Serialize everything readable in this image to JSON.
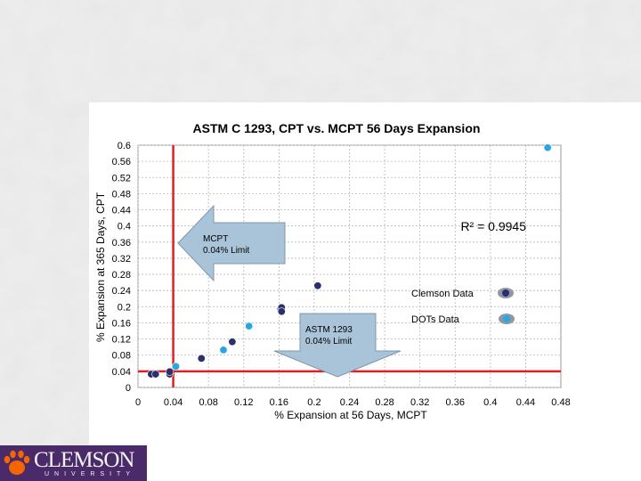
{
  "chart_data": {
    "type": "scatter",
    "title": "ASTM C 1293, CPT vs. MCPT 56 Days Expansion",
    "xlabel": "% Expansion at 56 Days, MCPT",
    "ylabel": "% Expansion at 365 Days, CPT",
    "xlim": [
      0,
      0.48
    ],
    "ylim": [
      0,
      0.6
    ],
    "x_ticks": [
      "0",
      "0.04",
      "0.08",
      "0.12",
      "0.16",
      "0.2",
      "0.24",
      "0.28",
      "0.32",
      "0.36",
      "0.4",
      "0.44",
      "0.48"
    ],
    "y_ticks": [
      "0",
      "0.04",
      "0.08",
      "0.12",
      "0.16",
      "0.2",
      "0.24",
      "0.28",
      "0.32",
      "0.36",
      "0.4",
      "0.44",
      "0.48",
      "0.52",
      "0.56",
      "0.6"
    ],
    "grid": true,
    "r_squared_label": "R² = 0.9945",
    "series": [
      {
        "name": "Clemson Data",
        "color": "#2b2f6e",
        "points": [
          {
            "x": 0.015,
            "y": 0.033
          },
          {
            "x": 0.02,
            "y": 0.033
          },
          {
            "x": 0.036,
            "y": 0.033
          },
          {
            "x": 0.036,
            "y": 0.039
          },
          {
            "x": 0.072,
            "y": 0.072
          },
          {
            "x": 0.107,
            "y": 0.113
          },
          {
            "x": 0.162,
            "y": 0.192
          },
          {
            "x": 0.162,
            "y": 0.195
          },
          {
            "x": 0.163,
            "y": 0.198
          },
          {
            "x": 0.163,
            "y": 0.188
          },
          {
            "x": 0.204,
            "y": 0.252
          }
        ]
      },
      {
        "name": "DOTs Data",
        "color": "#29a8e0",
        "points": [
          {
            "x": 0.043,
            "y": 0.052
          },
          {
            "x": 0.097,
            "y": 0.093
          },
          {
            "x": 0.126,
            "y": 0.152
          },
          {
            "x": 0.465,
            "y": 0.594
          }
        ]
      }
    ],
    "limit_lines": {
      "color": "#e02020",
      "x_limit": 0.04,
      "y_limit": 0.04,
      "x_limit_label_lines": [
        "MCPT",
        "0.04% Limit"
      ],
      "y_limit_label_lines": [
        "ASTM 1293",
        "0.04% Limit"
      ]
    }
  },
  "logo": {
    "word": "CLEMSON",
    "sub": "UNIVERSITY"
  }
}
